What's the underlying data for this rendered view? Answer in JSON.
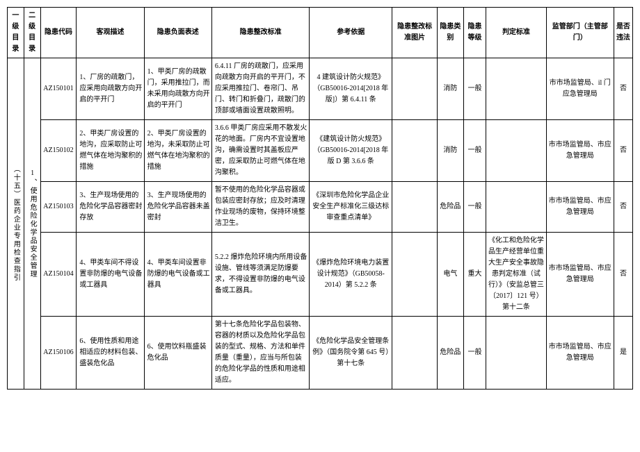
{
  "headers": {
    "c1": "一级目录",
    "c2": "二 级目录",
    "c3": "隐患代码",
    "c4": "客观描述",
    "c5": "隐患负面表述",
    "c6": "隐患整改标准",
    "c7": "参考依据",
    "c8": "隐患整改标准图片",
    "c9": "隐患类别",
    "c10": "隐患等级",
    "c11": "判定标准",
    "c12": "监管部门（主管部门）",
    "c13": "是否违法"
  },
  "level1": "（十五）医药企业专用检查指引",
  "level2": "1、使用危险化学品安全管理",
  "rows": [
    {
      "code": "AZ150101",
      "desc": "1、厂房的疏散门，应采用向疏散方向开启的平开门",
      "neg": "1、甲类厂房的疏散门，采用推拉门，而未采用向疏散方向开启的平开门",
      "std": "6.4.11 厂房的疏散门，应采用向疏散方向开启的平开门，不应采用推拉门、卷帘门、吊门、转门和折叠门，疏散门的顶部或墙面设置疏散照明。",
      "ref": "4 建筑设计防火规范》（GB50016-2014[2018 年版]）第 6.4.11 条",
      "img": "",
      "cat": "消防",
      "lvl": "一般",
      "jud": "",
      "dept": "市市场监管局、il 门应急管理局",
      "ill": "否"
    },
    {
      "code": "AZ150102",
      "desc": "2、甲类厂房设置的地沟，应采取防止可燃气体在地沟聚积的措施",
      "neg": "2、甲类厂房设置的地沟，未采取防止可燃气体在地沟聚积的措施",
      "std": "3.6.6 甲类厂房应采用不散发火花的地面。厂房内不宜设置地沟，确需设置时其盖板应严密，应采取防止可燃气体在地沟聚积。",
      "ref": "《建筑设计防火规范》（GB50016-2014[2018 年版 D 第 3.6.6 条",
      "img": "",
      "cat": "消防",
      "lvl": "一般",
      "jud": "",
      "dept": "市市场监管局、市应急管理局",
      "ill": "否"
    },
    {
      "code": "AZ150103",
      "desc": "3、生产现场使用的危险化学品容器密封存放",
      "neg": "3、生产现场使用的危险化学品容器未盖密封",
      "std": "暂不使用的危险化学品容器或包装应密封存放；应及时清理作业现场的废物，保持环境整洁卫生。",
      "ref": "《深圳市危险化学品企业安全生产标准化三级达标审查重点清单》",
      "img": "",
      "cat": "危险品",
      "lvl": "一般",
      "jud": "",
      "dept": "市市场监管局、市应急管理局",
      "ill": "否"
    },
    {
      "code": "AZ150104",
      "desc": "4、甲类车间不得设置非防爆的电气设备或工器具",
      "neg": "4、甲类车间设置非防爆的电气设备或工器具",
      "std": "5.2.2 爆炸危险环境内所用设备设施、管线等须满足防爆要求，不得设置非防爆的电气设备或工器具。",
      "ref": "《爆炸危险环境电力装置设计规范》（GB50058-2014）第 5.2.2 条",
      "img": "",
      "cat": "电气",
      "lvl": "重大",
      "jud": "《化工和危险化学品生产经营单位重大生产安全事故隐患判定标准（试行）》（安监总管三〔2017〕121 号）第十二条",
      "dept": "市市场监管局、市应急管理局",
      "ill": "否"
    },
    {
      "code": "AZ150106",
      "desc": "6、使用性质和用途相适应的材料包装、盛装危化品",
      "neg": "6、使用饮料瓶盛装危化品",
      "std": "第十七条危险化学品包装物、容器的材质以及危险化学品包装的型式、规格、方法和单件质量（重量），应当与所包装的危险化学品的性质和用途相适应。",
      "ref": "《危险化学品安全管理条例》（国务院令第 645 号）第十七条",
      "img": "",
      "cat": "危险品",
      "lvl": "一般",
      "jud": "",
      "dept": "市市场监管局、市应急管理局",
      "ill": "是"
    }
  ]
}
